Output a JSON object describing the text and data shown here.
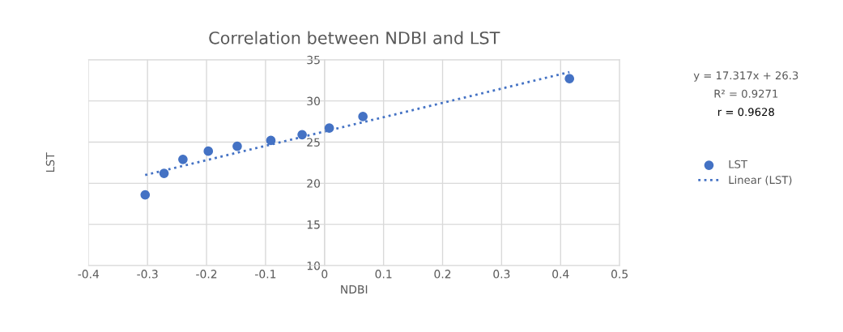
{
  "chart_data": {
    "type": "scatter",
    "title": "Correlation between NDBI and LST",
    "xlabel": "NDBI",
    "ylabel": "LST",
    "xlim": [
      -0.4,
      0.5
    ],
    "xticks": [
      -0.4,
      -0.3,
      -0.2,
      -0.1,
      0,
      0.1,
      0.2,
      0.3,
      0.4,
      0.5
    ],
    "ylim": [
      10,
      35
    ],
    "yticks": [
      10,
      15,
      20,
      25,
      30,
      35
    ],
    "grid": true,
    "legend": "right",
    "series": [
      {
        "name": "LST",
        "marker": "circle",
        "color": "#4472c4",
        "x": [
          -0.304,
          -0.272,
          -0.24,
          -0.197,
          -0.148,
          -0.091,
          -0.038,
          0.008,
          0.065,
          0.415
        ],
        "values": [
          18.6,
          21.2,
          22.9,
          23.9,
          24.5,
          25.2,
          25.9,
          26.7,
          28.1,
          32.7
        ]
      },
      {
        "name": "Linear (LST)",
        "type": "line",
        "line_style": "dotted",
        "color": "#4472c4",
        "x": [
          -0.304,
          0.415
        ],
        "values": [
          21.0,
          33.5
        ]
      }
    ],
    "annotations": [
      "y = 17.317x + 26.3",
      "R² = 0.9271",
      "r = 0.9628"
    ]
  }
}
